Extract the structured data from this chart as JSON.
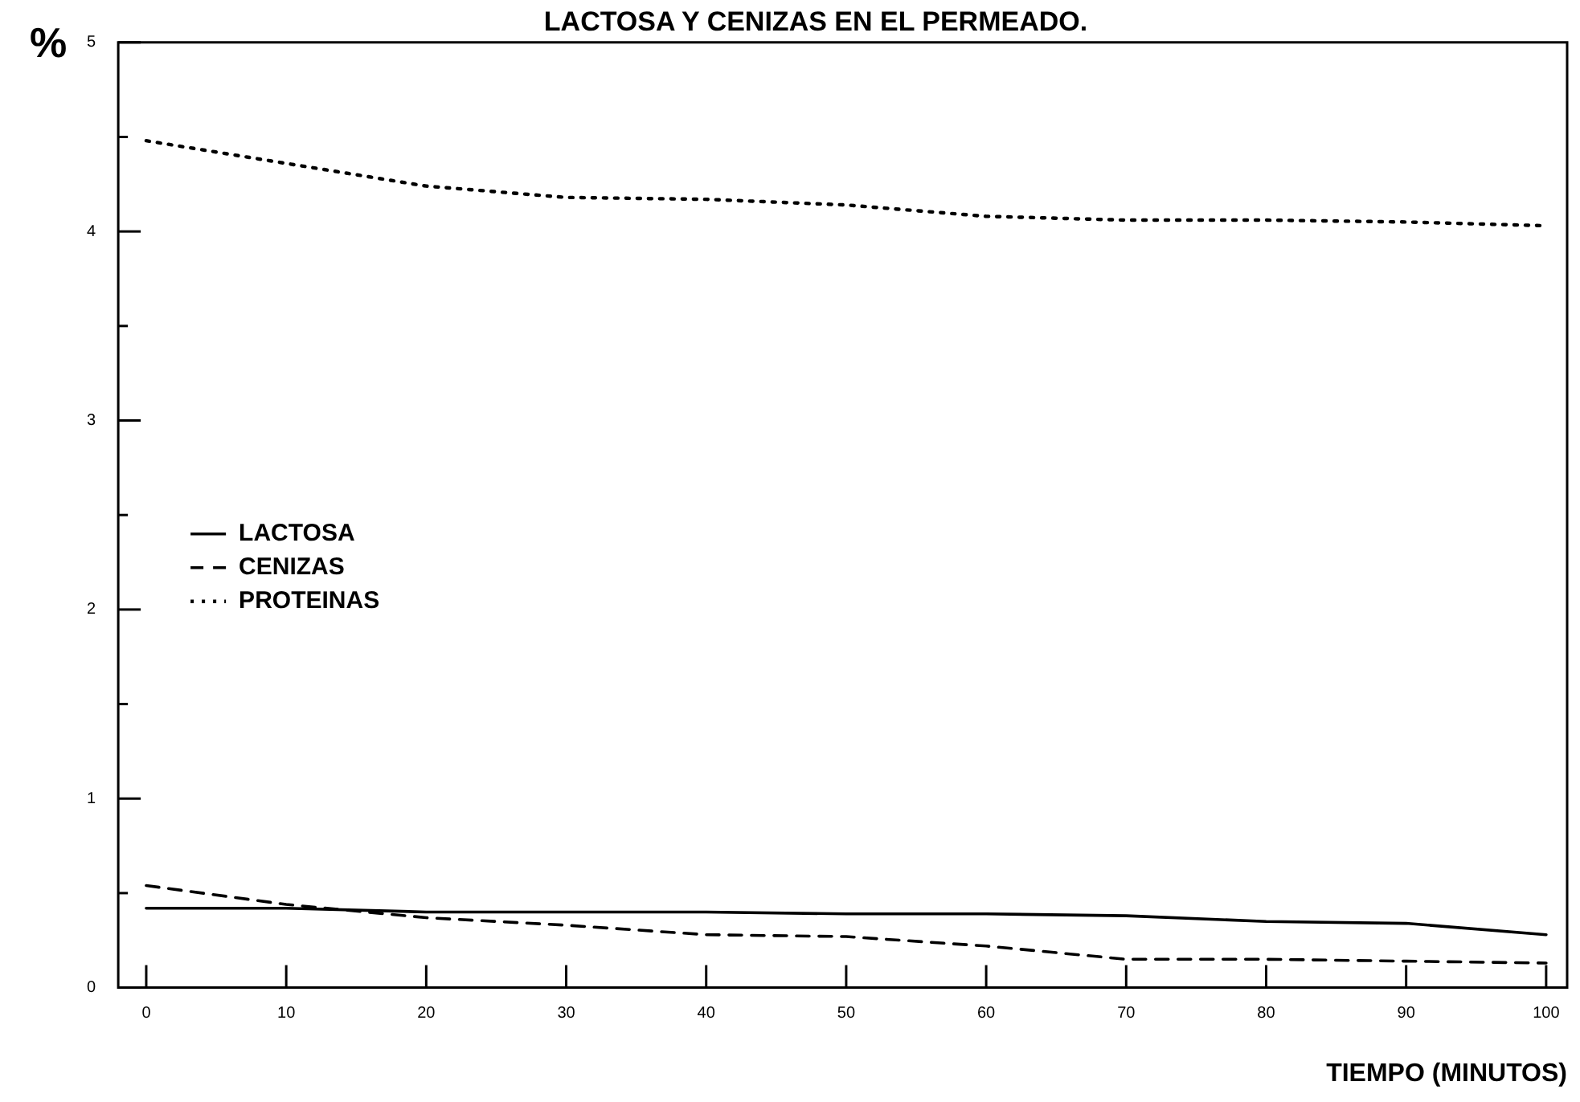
{
  "chart_data": {
    "type": "line",
    "title": "LACTOSA Y CENIZAS EN EL PERMEADO.",
    "xlabel": "TIEMPO (MINUTOS)",
    "ylabel": "%",
    "x": [
      0,
      10,
      20,
      30,
      40,
      50,
      60,
      70,
      80,
      90,
      100
    ],
    "xlim": [
      -2,
      101.5
    ],
    "xticks": [
      0,
      10,
      20,
      30,
      40,
      50,
      60,
      70,
      80,
      90,
      100
    ],
    "ylim": [
      0,
      5
    ],
    "yticks": [
      0,
      {
        "value": 0.5,
        "label": null
      },
      1,
      {
        "value": 1.5,
        "label": null
      },
      2,
      {
        "value": 2.5,
        "label": null
      },
      3,
      {
        "value": 3.5,
        "label": null
      },
      4,
      {
        "value": 4.5,
        "label": null
      },
      5
    ],
    "grid": false,
    "legend": "left",
    "marker": "none",
    "series": [
      {
        "name": "LACTOSA",
        "color": "#000000",
        "line_style": "solid",
        "values": [
          0.42,
          0.42,
          0.4,
          0.4,
          0.4,
          0.39,
          0.39,
          0.38,
          0.35,
          0.34,
          0.28
        ]
      },
      {
        "name": "CENIZAS",
        "color": "#000000",
        "line_style": "dashed",
        "values": [
          0.54,
          0.44,
          0.37,
          0.33,
          0.28,
          0.27,
          0.22,
          0.15,
          0.15,
          0.14,
          0.13
        ]
      },
      {
        "name": "PROTEINAS",
        "color": "#000000",
        "line_style": "dotted",
        "values": [
          4.48,
          4.36,
          4.24,
          4.18,
          4.17,
          4.14,
          4.08,
          4.06,
          4.06,
          4.05,
          4.03
        ]
      }
    ]
  }
}
